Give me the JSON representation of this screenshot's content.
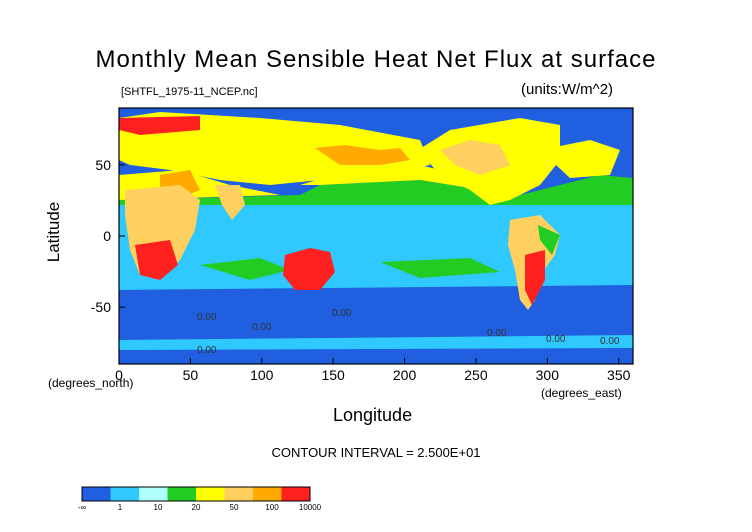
{
  "title": "Monthly Mean Sensible Heat Net Flux at surface",
  "file_label": "[SHTFL_1975-11_NCEP.nc]",
  "units_label": "(units:W/m^2)",
  "contour_interval": "CONTOUR INTERVAL = 2.500E+01",
  "chart_data": {
    "type": "heatmap",
    "title": "Monthly Mean Sensible Heat Net Flux at surface",
    "xlabel": "Longitude",
    "xlabel_unit": "(degrees_east)",
    "ylabel": "Latitude",
    "ylabel_unit": "(degrees_north)",
    "xlim": [
      0,
      360
    ],
    "ylim": [
      -90,
      90
    ],
    "xticks": [
      "0",
      "50",
      "100",
      "150",
      "200",
      "250",
      "300",
      "350"
    ],
    "xtick_values": [
      0,
      50,
      100,
      150,
      200,
      250,
      300,
      350
    ],
    "yticks": [
      "50",
      "0",
      "-50"
    ],
    "ytick_values": [
      50,
      0,
      -50
    ],
    "contour_labels": [
      "0.00",
      "0.00",
      "0.00",
      "0.00",
      "0.00",
      "0.00",
      "0.00"
    ],
    "colorbar": {
      "labels": [
        "-∞",
        "1",
        "10",
        "20",
        "50",
        "100",
        "10000"
      ],
      "colors": [
        "#1f5fe0",
        "#2fc8ff",
        "#b0ffff",
        "#22cc22",
        "#ffff00",
        "#ffd060",
        "#ffaa00",
        "#ff2020"
      ]
    },
    "palette": {
      "ocean_cold": "#1f5fe0",
      "ocean_mid": "#2fc8ff",
      "ocean_light": "#b0ffff",
      "green": "#22cc22",
      "yellow": "#ffff00",
      "light_orange": "#ffd060",
      "orange": "#ffaa00",
      "red": "#ff2020"
    }
  }
}
